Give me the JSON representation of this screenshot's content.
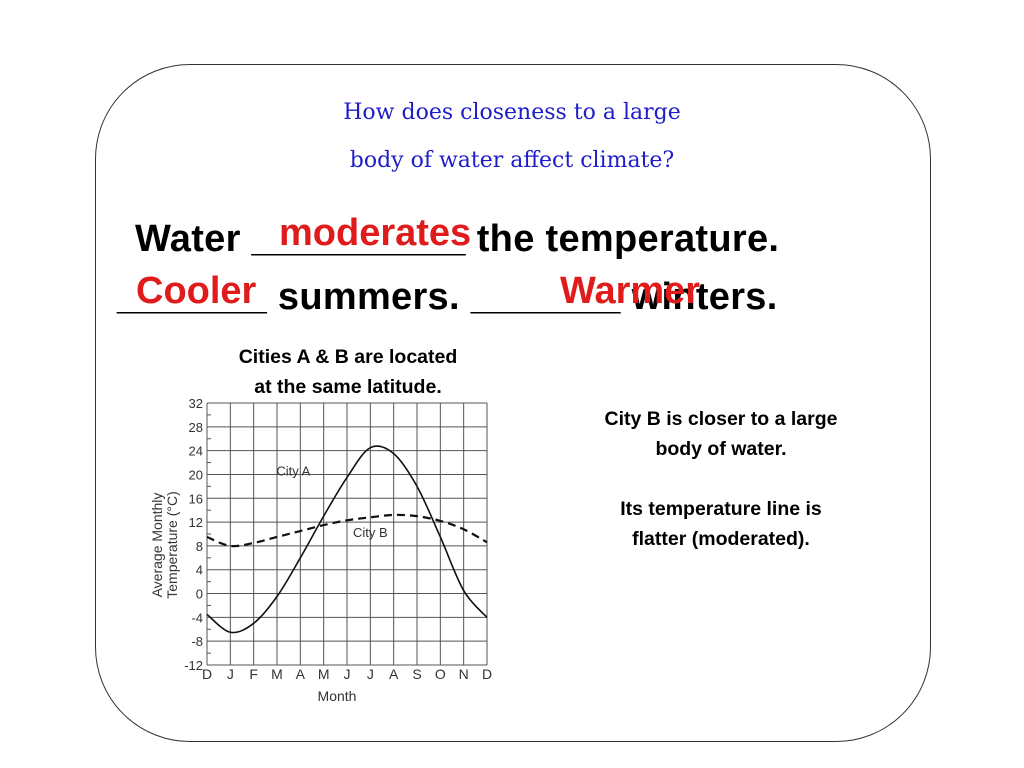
{
  "question": {
    "line1": "How does closeness to a large",
    "line2": "body of water affect climate?"
  },
  "statement": {
    "line1_start": "Water ",
    "blank1": "__________",
    "line1_end": " the temperature.",
    "answer1": "moderates",
    "blank2": "_______",
    "line2_mid": " summers. ",
    "blank3": "_______",
    "line2_end": " winters.",
    "answer2": "Cooler",
    "answer3": "Warmer"
  },
  "chart_caption": {
    "line1": "Cities A & B are located",
    "line2": "at the same latitude."
  },
  "side_notes": {
    "line1": "City  B is closer to a large",
    "line2": "body of water.",
    "line3": "Its temperature line is",
    "line4": "flatter (moderated)."
  },
  "chart_data": {
    "type": "line",
    "xlabel": "Month",
    "ylabel": [
      "Average Monthly",
      "Temperature (°C)"
    ],
    "categories": [
      "D",
      "J",
      "F",
      "M",
      "A",
      "M",
      "J",
      "J",
      "A",
      "S",
      "O",
      "N",
      "D"
    ],
    "y_ticks": [
      32,
      28,
      24,
      20,
      16,
      12,
      8,
      4,
      0,
      -4,
      -8,
      -12
    ],
    "ylim": [
      -12,
      32
    ],
    "grid": true,
    "series": [
      {
        "name": "City A",
        "style": "solid",
        "values": [
          -3.5,
          -6.5,
          -5,
          -0.5,
          6,
          13,
          19.5,
          24.5,
          23.5,
          18,
          9.5,
          0.5,
          -4
        ],
        "label_anchor": {
          "x": 3.7,
          "y": 19.8
        }
      },
      {
        "name": "City B",
        "style": "dashed",
        "values": [
          9.5,
          8,
          8.5,
          9.5,
          10.5,
          11.5,
          12.3,
          12.8,
          13.2,
          13,
          12.2,
          10.8,
          8.6
        ],
        "label_anchor": {
          "x": 7,
          "y": 9.5
        }
      }
    ]
  }
}
